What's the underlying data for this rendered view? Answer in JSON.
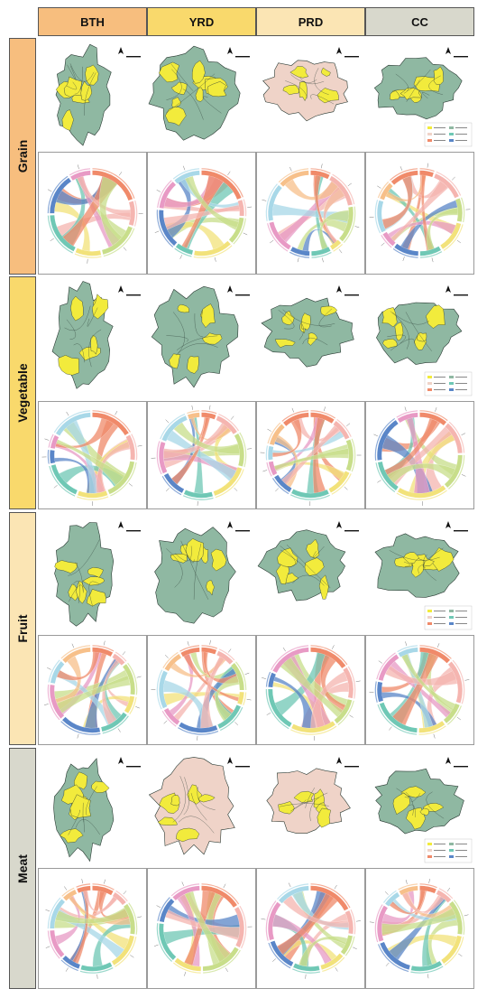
{
  "columns": [
    {
      "label": "BTH",
      "color": "#F7BE7E"
    },
    {
      "label": "YRD",
      "color": "#F9D96C"
    },
    {
      "label": "PRD",
      "color": "#FBE5B4"
    },
    {
      "label": "CC",
      "color": "#D8D8CC"
    }
  ],
  "rows": [
    {
      "label": "Grain",
      "color": "#F7BE7E"
    },
    {
      "label": "Vegetable",
      "color": "#F9D96C"
    },
    {
      "label": "Fruit",
      "color": "#FBE5B4"
    },
    {
      "label": "Meat",
      "color": "#D8D8CC"
    }
  ],
  "map_colors": {
    "base": "#8FB8A2",
    "highlight": "#F2EB3C",
    "pink": "#EFD3C8",
    "line": "#2a3a33"
  },
  "chord_palette": [
    "#F08A6A",
    "#F5B5B0",
    "#C8DE8A",
    "#F2E27A",
    "#6FC8B5",
    "#5A86C8",
    "#E89AC5",
    "#A8D8E8",
    "#F7C08A"
  ]
}
